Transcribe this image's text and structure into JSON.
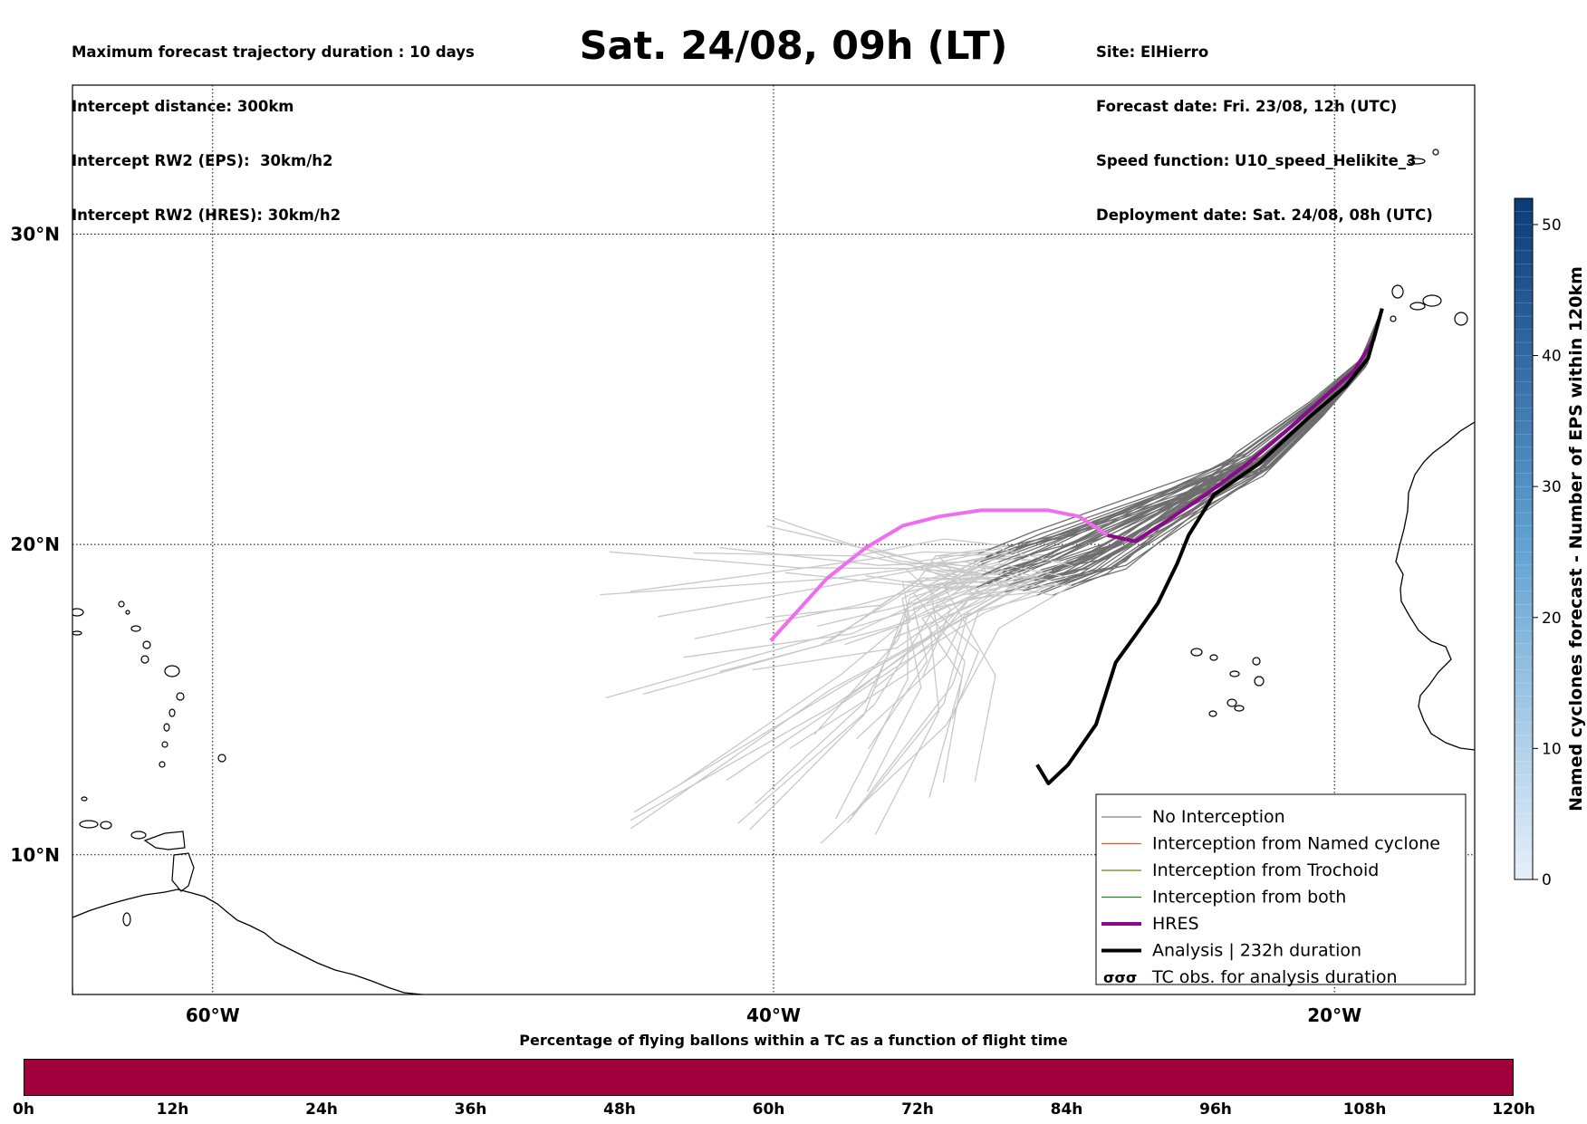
{
  "header": {
    "title": "Sat. 24/08, 09h (LT)",
    "left_lines": [
      "Maximum forecast trajectory duration : 10 days",
      "Intercept distance: 300km",
      "Intercept RW2 (EPS):  30km/h2",
      "Intercept RW2 (HRES): 30km/h2"
    ],
    "right_lines": [
      "Site: ElHierro",
      "Forecast date: Fri. 23/08, 12h (UTC)",
      "Speed function: U10_speed_Helikite_3",
      "Deployment date: Sat. 24/08, 08h (UTC)"
    ]
  },
  "map": {
    "lon_range": [
      -65,
      -15
    ],
    "lat_range": [
      5.5,
      34.8
    ],
    "gridlines": true,
    "lon_ticks": [
      {
        "lon": -60,
        "label": "60°W"
      },
      {
        "lon": -40,
        "label": "40°W"
      },
      {
        "lon": -20,
        "label": "20°W"
      }
    ],
    "lat_ticks": [
      {
        "lat": 10,
        "label": "10°N"
      },
      {
        "lat": 20,
        "label": "20°N"
      },
      {
        "lat": 30,
        "label": "30°N"
      }
    ],
    "site_lonlat": [
      -18.3,
      27.6
    ],
    "hres_track": [
      [
        -18.3,
        27.6
      ],
      [
        -18.6,
        26.6
      ],
      [
        -19.3,
        25.6
      ],
      [
        -20.3,
        24.8
      ],
      [
        -21.8,
        23.6
      ],
      [
        -23.1,
        22.6
      ],
      [
        -24.6,
        21.6
      ],
      [
        -25.9,
        20.8
      ],
      [
        -27.1,
        20.1
      ],
      [
        -28.1,
        20.3
      ],
      [
        -29.1,
        20.9
      ],
      [
        -30.2,
        21.1
      ],
      [
        -31.3,
        21.1
      ],
      [
        -32.6,
        21.1
      ],
      [
        -34.1,
        20.9
      ],
      [
        -35.4,
        20.6
      ],
      [
        -36.7,
        19.9
      ],
      [
        -38.1,
        18.9
      ],
      [
        -39.1,
        17.9
      ],
      [
        -40.1,
        16.9
      ]
    ],
    "analysis_track": [
      [
        -18.3,
        27.6
      ],
      [
        -18.8,
        26.0
      ],
      [
        -19.6,
        25.1
      ],
      [
        -20.9,
        24.1
      ],
      [
        -22.7,
        22.6
      ],
      [
        -24.3,
        21.6
      ],
      [
        -25.2,
        20.3
      ],
      [
        -25.6,
        19.4
      ],
      [
        -26.3,
        18.1
      ],
      [
        -27.0,
        17.2
      ],
      [
        -27.8,
        16.2
      ],
      [
        -28.5,
        14.2
      ],
      [
        -29.5,
        12.9
      ],
      [
        -30.2,
        12.3
      ],
      [
        -30.6,
        12.9
      ]
    ],
    "colors": {
      "coast": "#000000",
      "grid": "#000000",
      "no_interception": "#6e6e6e",
      "late_ensemble": "#c8c8c8",
      "hres": "#8b0a8b",
      "hres_late": "#f06cf0",
      "analysis": "#000000"
    }
  },
  "legend": {
    "items": [
      {
        "label": "No Interception",
        "color": "#808080",
        "width": 1.2
      },
      {
        "label": "Interception from Named cyclone",
        "color": "#e8581f",
        "width": 1.2
      },
      {
        "label": "Interception from Trochoid",
        "color": "#7a7a1e",
        "width": 1.2
      },
      {
        "label": "Interception from both",
        "color": "#1e8a1e",
        "width": 1.2
      },
      {
        "label": "HRES",
        "color": "#8b0a8b",
        "width": 4
      },
      {
        "label": "Analysis | 232h duration",
        "color": "#000000",
        "width": 4
      },
      {
        "label": "TC obs. for analysis duration",
        "color": "#000000",
        "symbol": "cyclone-icon"
      }
    ]
  },
  "colorbar": {
    "label": "Named cyclones forecast - Number of EPS within 120km",
    "min": 0,
    "max": 52,
    "ticks": [
      0,
      10,
      20,
      30,
      40,
      50
    ],
    "color_low": "#e6eff9",
    "color_high": "#0b3a78"
  },
  "time_bar": {
    "title": "Percentage of flying ballons within a TC as a function of flight time",
    "color": "#a0003c",
    "ticks": [
      "0h",
      "12h",
      "24h",
      "36h",
      "48h",
      "60h",
      "72h",
      "84h",
      "96h",
      "108h",
      "120h"
    ]
  }
}
